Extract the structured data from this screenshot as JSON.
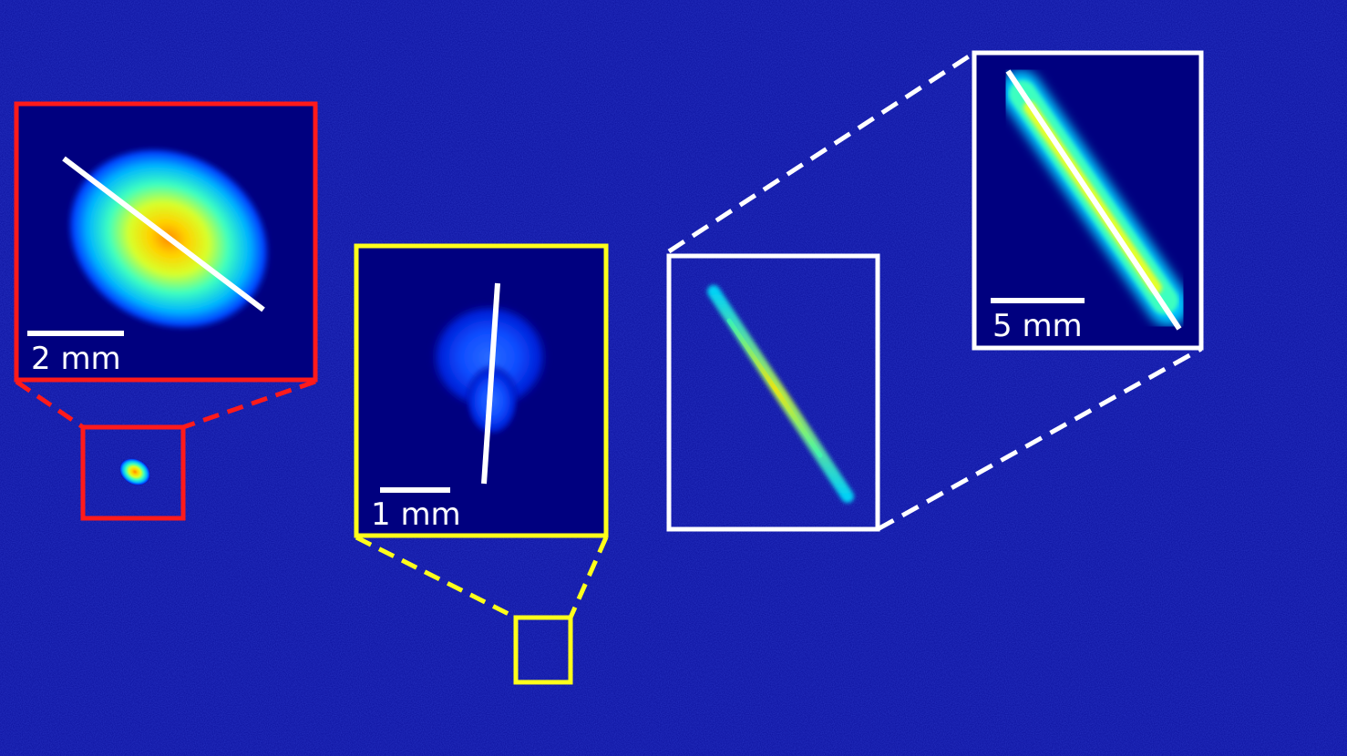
{
  "colors": {
    "background": "#0a0f9c",
    "panel_background": "#00007f",
    "red_frame": "#ff1a1a",
    "yellow_frame": "#ffff1a",
    "white_frame": "#ffffff",
    "profile_line": "#ffffff"
  },
  "panels": {
    "red": {
      "scale_bar_label": "2 mm"
    },
    "yellow": {
      "scale_bar_label": "1 mm"
    },
    "white": {
      "scale_bar_label": "5 mm"
    }
  }
}
